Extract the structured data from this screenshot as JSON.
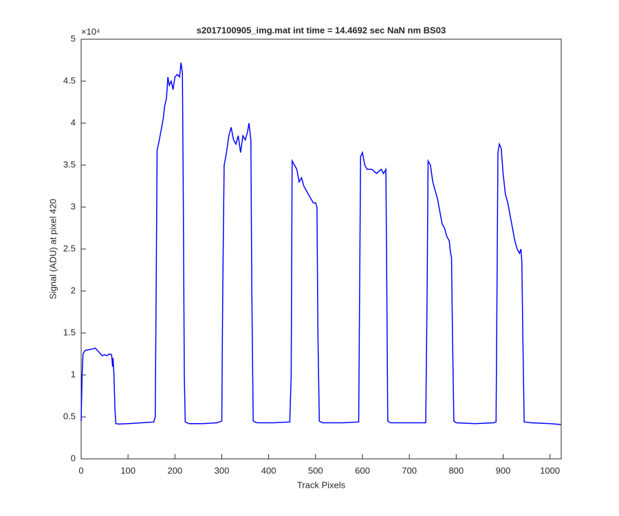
{
  "chart_data": {
    "type": "line",
    "title": "s2017100905_img.mat int time = 14.4692 sec  NaN nm BS03",
    "x_label": "Track Pixels",
    "y_label": "Signal (ADU) at pixel 420",
    "y_exponent_label": "×10⁴",
    "color": "#0000ff",
    "xlim": [
      0,
      1024
    ],
    "ylim": [
      0,
      50000
    ],
    "xticks": [
      0,
      100,
      200,
      300,
      400,
      500,
      600,
      700,
      800,
      900,
      1000
    ],
    "yticks": [
      {
        "value": 0,
        "label": "0"
      },
      {
        "value": 5000,
        "label": "0.5"
      },
      {
        "value": 10000,
        "label": "1"
      },
      {
        "value": 15000,
        "label": "1.5"
      },
      {
        "value": 20000,
        "label": "2"
      },
      {
        "value": 25000,
        "label": "2.5"
      },
      {
        "value": 30000,
        "label": "3"
      },
      {
        "value": 35000,
        "label": "3.5"
      },
      {
        "value": 40000,
        "label": "4"
      },
      {
        "value": 45000,
        "label": "4.5"
      },
      {
        "value": 50000,
        "label": "5"
      }
    ],
    "x": [
      0,
      2,
      4,
      8,
      15,
      25,
      30,
      35,
      40,
      45,
      50,
      55,
      60,
      65,
      67,
      68,
      70,
      72,
      74,
      80,
      100,
      130,
      155,
      158,
      160,
      162,
      165,
      170,
      175,
      178,
      182,
      185,
      188,
      192,
      196,
      200,
      205,
      210,
      213,
      216,
      218,
      220,
      222,
      230,
      260,
      290,
      300,
      302,
      305,
      310,
      315,
      320,
      325,
      330,
      335,
      340,
      345,
      350,
      355,
      358,
      362,
      364,
      367,
      375,
      410,
      445,
      448,
      450,
      455,
      460,
      465,
      470,
      475,
      480,
      485,
      490,
      495,
      500,
      503,
      505,
      508,
      515,
      560,
      592,
      594,
      596,
      600,
      605,
      610,
      620,
      630,
      640,
      645,
      650,
      652,
      654,
      660,
      700,
      735,
      738,
      740,
      745,
      750,
      755,
      760,
      765,
      770,
      775,
      780,
      785,
      788,
      790,
      792,
      795,
      800,
      840,
      880,
      885,
      887,
      889,
      892,
      896,
      900,
      905,
      910,
      915,
      920,
      925,
      930,
      935,
      938,
      940,
      942,
      945,
      960,
      1000,
      1023
    ],
    "values": [
      4500,
      10000,
      12500,
      12900,
      13000,
      13100,
      13200,
      12900,
      12600,
      12300,
      12400,
      12300,
      12500,
      12400,
      11000,
      12000,
      10000,
      6000,
      4200,
      4150,
      4200,
      4300,
      4400,
      5000,
      20000,
      36800,
      37500,
      39000,
      40500,
      42000,
      43000,
      45500,
      44500,
      45000,
      44000,
      45500,
      45800,
      45500,
      47200,
      46000,
      30000,
      10000,
      4400,
      4200,
      4200,
      4300,
      4500,
      20000,
      35000,
      36500,
      38500,
      39500,
      38000,
      37500,
      38500,
      36500,
      38500,
      38000,
      39000,
      40000,
      38000,
      20000,
      4500,
      4300,
      4300,
      4400,
      10000,
      35500,
      35000,
      34500,
      33000,
      33500,
      32500,
      32000,
      31500,
      31000,
      30500,
      30500,
      30000,
      15000,
      4500,
      4300,
      4300,
      4400,
      20000,
      36000,
      36500,
      35000,
      34500,
      34500,
      34000,
      34500,
      34000,
      34500,
      20000,
      4500,
      4300,
      4300,
      4300,
      20000,
      35500,
      35000,
      33000,
      32000,
      31000,
      29500,
      28000,
      27500,
      26500,
      26000,
      24500,
      24000,
      15000,
      4500,
      4300,
      4200,
      4300,
      4400,
      20000,
      36500,
      37500,
      37000,
      34000,
      31500,
      30500,
      29000,
      27500,
      26000,
      25000,
      24500,
      25000,
      23500,
      15000,
      4400,
      4300,
      4200,
      4100
    ]
  }
}
